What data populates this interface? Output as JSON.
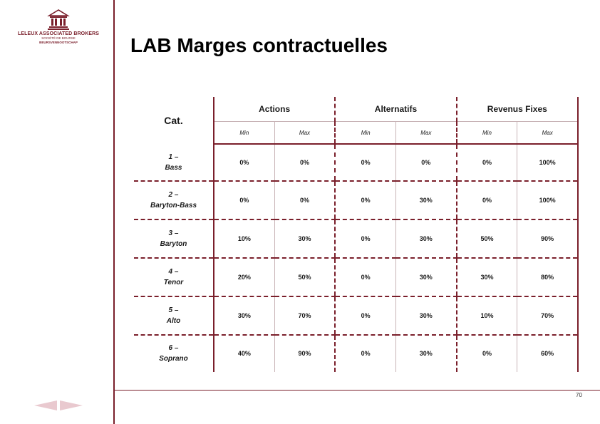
{
  "logo": {
    "name": "LELEUX ASSOCIATED BROKERS",
    "sub1": "SOCIÉTÉ DE BOURSE",
    "sub2": "BEURSVENNOOTSCHAP"
  },
  "title": "LAB Marges contractuelles",
  "table": {
    "cat_header": "Cat.",
    "groups": [
      "Actions",
      "Alternatifs",
      "Revenus Fixes"
    ],
    "subheaders": [
      "Min",
      "Max",
      "Min",
      "Max",
      "Min",
      "Max"
    ],
    "rows": [
      {
        "num": "1 –",
        "name": "Bass",
        "values": [
          "0%",
          "0%",
          "0%",
          "0%",
          "0%",
          "100%"
        ]
      },
      {
        "num": "2 –",
        "name": "Baryton-Bass",
        "values": [
          "0%",
          "0%",
          "0%",
          "30%",
          "0%",
          "100%"
        ]
      },
      {
        "num": "3 –",
        "name": "Baryton",
        "values": [
          "10%",
          "30%",
          "0%",
          "30%",
          "50%",
          "90%"
        ]
      },
      {
        "num": "4 –",
        "name": "Tenor",
        "values": [
          "20%",
          "50%",
          "0%",
          "30%",
          "30%",
          "80%"
        ]
      },
      {
        "num": "5 –",
        "name": "Alto",
        "values": [
          "30%",
          "70%",
          "0%",
          "30%",
          "10%",
          "70%"
        ]
      },
      {
        "num": "6 –",
        "name": "Soprano",
        "values": [
          "40%",
          "90%",
          "0%",
          "30%",
          "0%",
          "60%"
        ]
      }
    ]
  },
  "footer": {
    "page_number": "70"
  },
  "colors": {
    "accent": "#7a1f2b"
  },
  "icons": {
    "logo": "building-columns-icon",
    "prev": "previous-arrow-icon",
    "next": "next-arrow-icon"
  }
}
